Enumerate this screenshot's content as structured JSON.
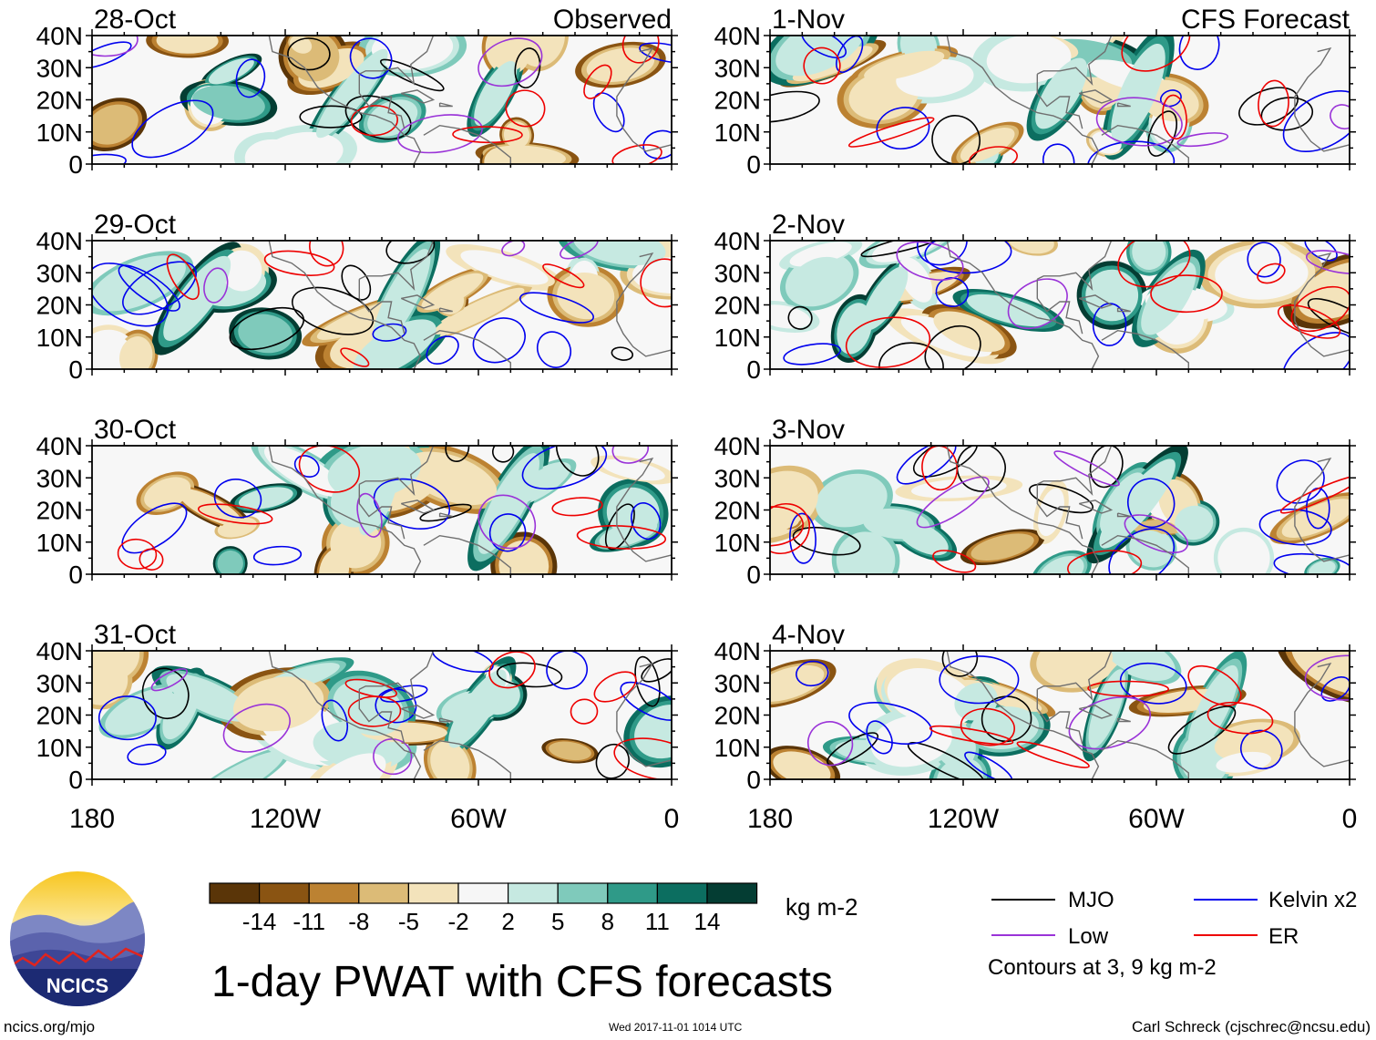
{
  "title": "1-day PWAT with CFS forecasts",
  "url": "ncics.org/mjo",
  "timestamp": "Wed 2017-11-01 1014 UTC",
  "credit": "Carl Schreck (cjschrec@ncsu.edu)",
  "logo_text": "NCICS",
  "column_headers": {
    "observed": "Observed",
    "forecast": "CFS Forecast"
  },
  "colorbar": {
    "units": "kg m-2",
    "tick_labels": [
      "-14",
      "-11",
      "-8",
      "-5",
      "-2",
      "2",
      "5",
      "8",
      "11",
      "14"
    ],
    "colors": [
      "#5a3508",
      "#8a5412",
      "#bc8232",
      "#dcbb77",
      "#f3e3bb",
      "#f6f6f6",
      "#c6e9e1",
      "#7fcabb",
      "#2f9a88",
      "#0c6e60",
      "#043d33"
    ]
  },
  "legend": {
    "items": [
      {
        "label": "MJO",
        "color": "#000000"
      },
      {
        "label": "Kelvin x2",
        "color": "#0000ee"
      },
      {
        "label": "Low",
        "color": "#9a33d8"
      },
      {
        "label": "ER",
        "color": "#ee0000"
      }
    ],
    "note": "Contours at 3, 9 kg m-2"
  },
  "chart_data": {
    "type": "heatmap",
    "variable": "1-day precipitable water anomaly",
    "x_ticks": [
      "180",
      "120W",
      "60W",
      "0"
    ],
    "y_ticks": [
      "0",
      "10N",
      "20N",
      "30N",
      "40N"
    ],
    "xlim": [
      -180,
      0
    ],
    "ylim": [
      0,
      40
    ],
    "panels": [
      {
        "date": "28-Oct",
        "column": "Observed",
        "seed": 11
      },
      {
        "date": "29-Oct",
        "column": "Observed",
        "seed": 23
      },
      {
        "date": "30-Oct",
        "column": "Observed",
        "seed": 37
      },
      {
        "date": "31-Oct",
        "column": "Observed",
        "seed": 41
      },
      {
        "date": "1-Nov",
        "column": "CFS Forecast",
        "seed": 53
      },
      {
        "date": "2-Nov",
        "column": "CFS Forecast",
        "seed": 67
      },
      {
        "date": "3-Nov",
        "column": "CFS Forecast",
        "seed": 71
      },
      {
        "date": "4-Nov",
        "column": "CFS Forecast",
        "seed": 89
      }
    ]
  }
}
